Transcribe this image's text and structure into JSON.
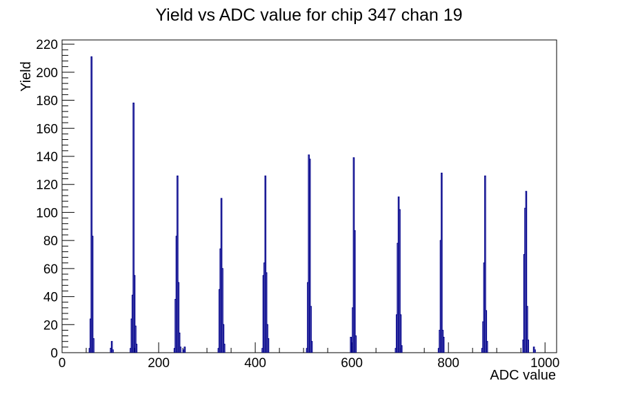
{
  "chart_data": {
    "type": "histogram",
    "title": "Yield vs ADC value for chip 347 chan 19",
    "xlabel": "ADC value",
    "ylabel": "Yield",
    "x_range": [
      0,
      1024
    ],
    "y_range": [
      0,
      223
    ],
    "x_major_ticks": [
      0,
      200,
      400,
      600,
      800,
      1000
    ],
    "x_minor_step": 50,
    "y_major_ticks": [
      0,
      20,
      40,
      60,
      80,
      100,
      120,
      140,
      160,
      180,
      200,
      220
    ],
    "y_minor_step": 4,
    "grid": false,
    "legend": "none",
    "line_color": "#00008b",
    "axis_color": "#000000",
    "bin_width": 2,
    "peaks": [
      {
        "adc": 61,
        "yield": 211
      },
      {
        "adc": 104,
        "yield": 8
      },
      {
        "adc": 148,
        "yield": 178
      },
      {
        "adc": 239,
        "yield": 126
      },
      {
        "adc": 254,
        "yield": 4
      },
      {
        "adc": 330,
        "yield": 110
      },
      {
        "adc": 421,
        "yield": 126
      },
      {
        "adc": 513,
        "yield": 141
      },
      {
        "adc": 604,
        "yield": 139
      },
      {
        "adc": 697,
        "yield": 111
      },
      {
        "adc": 786,
        "yield": 128
      },
      {
        "adc": 876,
        "yield": 126
      },
      {
        "adc": 961,
        "yield": 115
      },
      {
        "adc": 978,
        "yield": 4
      }
    ],
    "bins": [
      [
        57,
        3
      ],
      [
        59,
        24
      ],
      [
        61,
        211
      ],
      [
        63,
        83
      ],
      [
        65,
        10
      ],
      [
        101,
        3
      ],
      [
        103,
        8
      ],
      [
        105,
        2
      ],
      [
        142,
        3
      ],
      [
        144,
        24
      ],
      [
        146,
        41
      ],
      [
        148,
        178
      ],
      [
        150,
        55
      ],
      [
        152,
        19
      ],
      [
        154,
        6
      ],
      [
        233,
        3
      ],
      [
        235,
        38
      ],
      [
        237,
        83
      ],
      [
        239,
        126
      ],
      [
        241,
        50
      ],
      [
        243,
        14
      ],
      [
        245,
        4
      ],
      [
        251,
        2
      ],
      [
        254,
        4
      ],
      [
        324,
        3
      ],
      [
        326,
        45
      ],
      [
        328,
        74
      ],
      [
        330,
        110
      ],
      [
        332,
        60
      ],
      [
        334,
        20
      ],
      [
        336,
        6
      ],
      [
        415,
        3
      ],
      [
        417,
        55
      ],
      [
        419,
        64
      ],
      [
        421,
        126
      ],
      [
        423,
        57
      ],
      [
        425,
        20
      ],
      [
        427,
        10
      ],
      [
        507,
        3
      ],
      [
        509,
        50
      ],
      [
        511,
        141
      ],
      [
        513,
        138
      ],
      [
        515,
        33
      ],
      [
        517,
        8
      ],
      [
        598,
        11
      ],
      [
        600,
        5
      ],
      [
        602,
        32
      ],
      [
        604,
        139
      ],
      [
        606,
        87
      ],
      [
        608,
        12
      ],
      [
        691,
        3
      ],
      [
        693,
        27
      ],
      [
        695,
        78
      ],
      [
        697,
        111
      ],
      [
        699,
        102
      ],
      [
        701,
        27
      ],
      [
        703,
        5
      ],
      [
        780,
        3
      ],
      [
        782,
        16
      ],
      [
        784,
        80
      ],
      [
        786,
        128
      ],
      [
        788,
        16
      ],
      [
        790,
        11
      ],
      [
        870,
        3
      ],
      [
        872,
        22
      ],
      [
        874,
        64
      ],
      [
        876,
        126
      ],
      [
        878,
        30
      ],
      [
        880,
        8
      ],
      [
        955,
        9
      ],
      [
        957,
        70
      ],
      [
        959,
        103
      ],
      [
        961,
        115
      ],
      [
        963,
        33
      ],
      [
        965,
        9
      ],
      [
        977,
        4
      ],
      [
        979,
        2
      ]
    ]
  }
}
